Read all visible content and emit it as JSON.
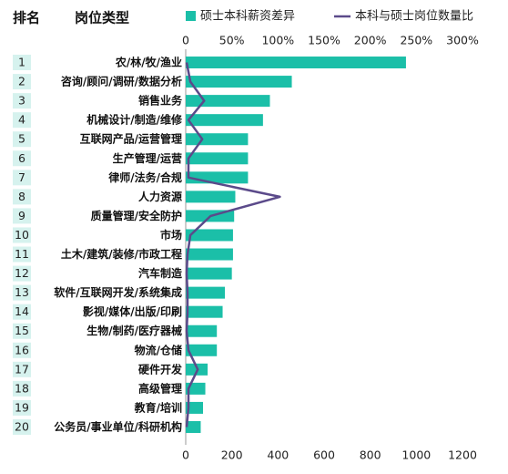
{
  "header": {
    "rank_label": "排名",
    "category_label": "岗位类型"
  },
  "colors": {
    "bar": "#1bbfa8",
    "line": "#5b4a8a",
    "rank_bg": "#d6f2ee",
    "grid": "#cccccc"
  },
  "chart_data": {
    "type": "bar",
    "orientation": "horizontal",
    "categories": [
      "农/林/牧/渔业",
      "咨询/顾问/调研/数据分析",
      "销售业务",
      "机械设计/制造/维修",
      "互联网产品/运营管理",
      "生产管理/运营",
      "律师/法务/合规",
      "人力资源",
      "质量管理/安全防护",
      "市场",
      "土木/建筑/装修/市政工程",
      "汽车制造",
      "软件/互联网开发/系统集成",
      "影视/媒体/出版/印刷",
      "生物/制药/医疗器械",
      "物流/仓储",
      "硬件开发",
      "高级管理",
      "教育/培训",
      "公务员/事业单位/科研机构"
    ],
    "ranks": [
      "1",
      "2",
      "3",
      "4",
      "5",
      "6",
      "7",
      "8",
      "9",
      "10",
      "11",
      "12",
      "13",
      "14",
      "15",
      "16",
      "17",
      "18",
      "19",
      "20"
    ],
    "series": [
      {
        "name": "硕士本科薪资差异",
        "type": "bar",
        "axis": "bottom",
        "values": [
          955,
          460,
          365,
          335,
          270,
          270,
          270,
          215,
          210,
          205,
          205,
          200,
          170,
          160,
          135,
          135,
          95,
          85,
          75,
          65
        ]
      },
      {
        "name": "本科与硕士岗位数量比",
        "type": "line",
        "axis": "top",
        "values": [
          0.01,
          0.05,
          0.2,
          0.03,
          0.18,
          0.03,
          0.03,
          1.02,
          0.27,
          0.05,
          0.02,
          0.01,
          0.02,
          0.02,
          0.01,
          0.03,
          0.13,
          0.03,
          0.03,
          0.01
        ]
      }
    ],
    "x_bottom": {
      "ticks": [
        0,
        200,
        400,
        600,
        800,
        1000,
        1200
      ],
      "tick_labels": [
        "0",
        "200",
        "400",
        "600",
        "800",
        "1000",
        "1200"
      ],
      "lim": [
        0,
        1200
      ]
    },
    "x_top": {
      "ticks": [
        0,
        0.5,
        1,
        1.5,
        2,
        2.5,
        3
      ],
      "tick_labels": [
        "0",
        "50%",
        "100%",
        "150%",
        "200%",
        "250%",
        "300%"
      ],
      "lim": [
        0,
        3
      ]
    },
    "legend_position": "top",
    "grid": false
  }
}
